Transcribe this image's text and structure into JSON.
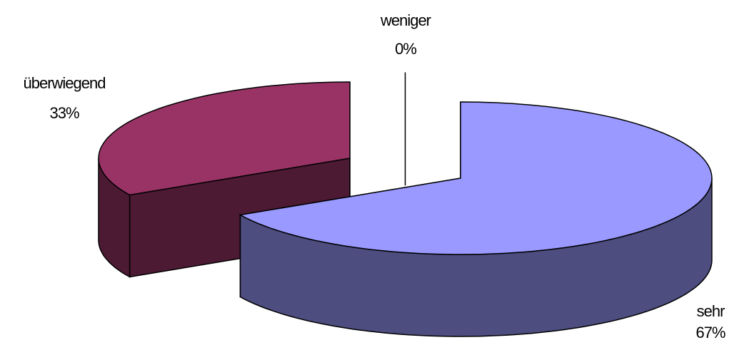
{
  "chart_data": {
    "type": "pie3d",
    "categories": [
      "sehr",
      "überwiegend",
      "weniger"
    ],
    "values": [
      67,
      33,
      0
    ],
    "value_labels": [
      "67%",
      "33%",
      "0%"
    ],
    "colors": [
      "#9999ff",
      "#993366",
      "#ffffcc"
    ]
  }
}
